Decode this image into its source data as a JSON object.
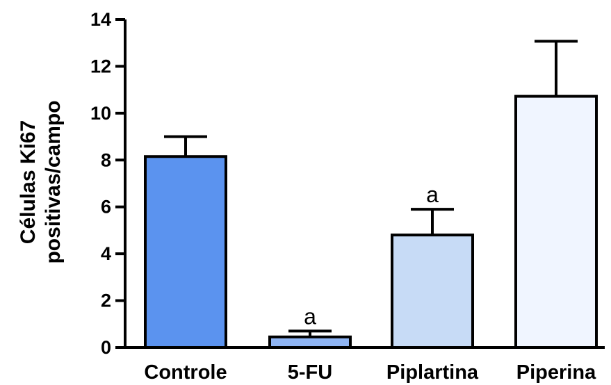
{
  "chart_data": {
    "type": "bar",
    "title": "",
    "xlabel": "",
    "ylabel_lines": [
      "Células Ki67",
      "positivas/campo"
    ],
    "categories": [
      "Controle",
      "5-FU",
      "Piplartina",
      "Piperina"
    ],
    "values": [
      8.15,
      0.45,
      4.8,
      10.72
    ],
    "errors": [
      0.85,
      0.25,
      1.1,
      2.35
    ],
    "annotations": [
      "",
      "a",
      "a",
      ""
    ],
    "colors": [
      "#5b93ef",
      "#8fb5f4",
      "#c7dbf6",
      "#f0f5ff"
    ],
    "ylim": [
      0,
      14
    ],
    "yticks": [
      0,
      2,
      4,
      6,
      8,
      10,
      12,
      14
    ],
    "grid": false,
    "legend": "none"
  }
}
